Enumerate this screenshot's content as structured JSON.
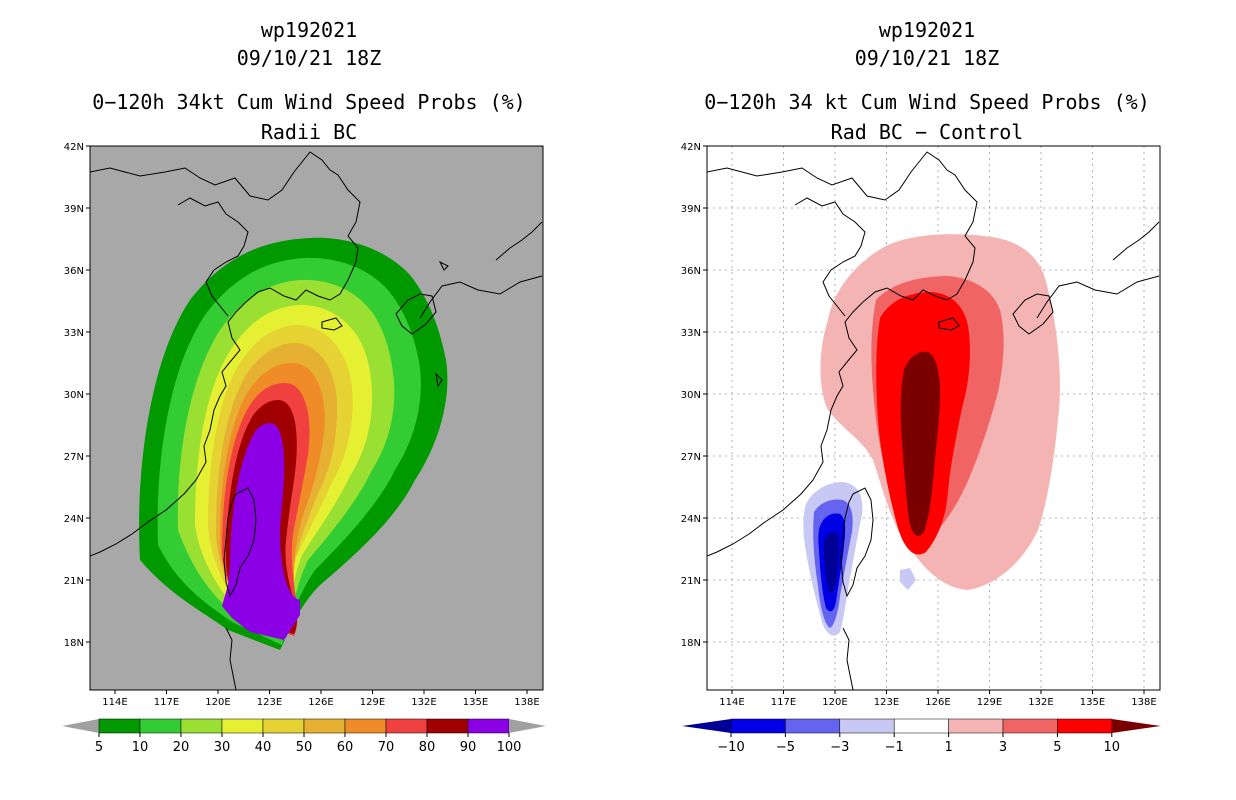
{
  "left": {
    "storm_id": "wp192021",
    "datetime": "09/10/21 18Z",
    "title": "0−120h 34kt Cum Wind Speed Probs (%)",
    "subtitle": "Radii BC",
    "lat_ticks": [
      "42N",
      "39N",
      "36N",
      "33N",
      "30N",
      "27N",
      "24N",
      "21N",
      "18N"
    ],
    "lon_ticks": [
      "114E",
      "117E",
      "120E",
      "123E",
      "126E",
      "129E",
      "132E",
      "135E",
      "138E"
    ],
    "colorbar": {
      "labels": [
        "5",
        "10",
        "20",
        "30",
        "40",
        "50",
        "60",
        "70",
        "80",
        "90",
        "100"
      ],
      "colors": [
        "#009900",
        "#33cc33",
        "#99e033",
        "#e6f033",
        "#e6d233",
        "#e6b033",
        "#f08c28",
        "#f04040",
        "#a00000",
        "#8c00e6"
      ],
      "under_color": "#a0a0a0",
      "over_color": "#a0a0a0"
    },
    "background_color": "#a8a8a8"
  },
  "right": {
    "storm_id": "wp192021",
    "datetime": "09/10/21 18Z",
    "title": "0−120h 34 kt Cum Wind Speed Probs (%)",
    "subtitle": "Rad BC − Control",
    "lat_ticks": [
      "42N",
      "39N",
      "36N",
      "33N",
      "30N",
      "27N",
      "24N",
      "21N",
      "18N"
    ],
    "lon_ticks": [
      "114E",
      "117E",
      "120E",
      "123E",
      "126E",
      "129E",
      "132E",
      "135E",
      "138E"
    ],
    "colorbar": {
      "labels": [
        "−10",
        "−5",
        "−3",
        "−1",
        "1",
        "3",
        "5",
        "10"
      ],
      "colors": [
        "#0000e6",
        "#6464f0",
        "#c8c8f5",
        "#ffffff",
        "#f5b4b4",
        "#f06464",
        "#ff0000"
      ],
      "under_color": "#000096",
      "over_color": "#7a0000"
    },
    "background_color": "#ffffff"
  }
}
